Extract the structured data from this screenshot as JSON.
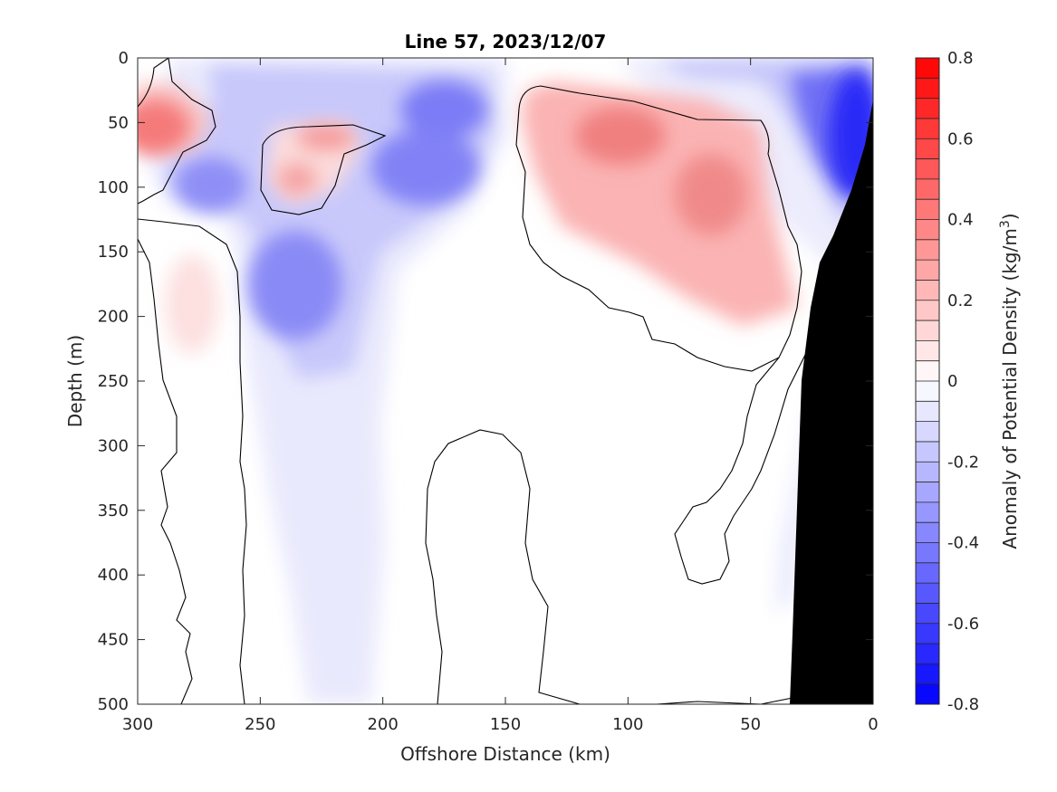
{
  "chart_data": {
    "type": "heatmap",
    "title": "Line 57, 2023/12/07",
    "xlabel": "Offshore Distance (km)",
    "ylabel": "Depth (m)",
    "xlim": [
      300,
      0
    ],
    "ylim": [
      0,
      500
    ],
    "x_ticks": [
      "300",
      "250",
      "200",
      "150",
      "100",
      "50",
      "0"
    ],
    "y_ticks": [
      "0",
      "50",
      "100",
      "150",
      "200",
      "250",
      "300",
      "350",
      "400",
      "450",
      "500"
    ],
    "colorbar": {
      "label": "Anomaly of Potential Density (kg/m",
      "label_sup": "3",
      "label_end": ")",
      "range": [
        -0.8,
        0.8
      ],
      "tick_labels": [
        "0.8",
        "0.6",
        "0.4",
        "0.2",
        "0",
        "-0.2",
        "-0.4",
        "-0.6",
        "-0.8"
      ],
      "levels": 32,
      "color_min": "#0000ff",
      "color_mid": "#ffffff",
      "color_max": "#ff0000"
    },
    "anomaly_features": [
      {
        "x": 293,
        "y": 52,
        "value": 0.3
      },
      {
        "x": 230,
        "y": 95,
        "value": 0.15
      },
      {
        "x": 222,
        "y": 62,
        "value": 0.2
      },
      {
        "x": 277,
        "y": 190,
        "value": 0.1
      },
      {
        "x": 270,
        "y": 98,
        "value": -0.3
      },
      {
        "x": 235,
        "y": 178,
        "value": -0.4
      },
      {
        "x": 172,
        "y": 40,
        "value": -0.4
      },
      {
        "x": 175,
        "y": 80,
        "value": -0.4
      },
      {
        "x": 100,
        "y": 58,
        "value": 0.3
      },
      {
        "x": 65,
        "y": 105,
        "value": 0.3
      },
      {
        "x": 12,
        "y": 60,
        "value": -0.7
      }
    ],
    "topography_color": "#000000"
  }
}
